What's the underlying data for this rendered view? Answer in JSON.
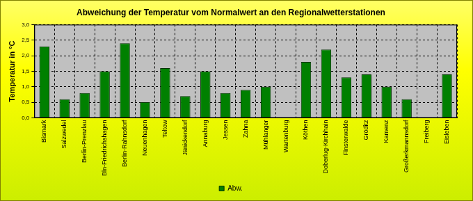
{
  "chart_data": {
    "type": "bar",
    "title": "Abweichung der Temperatur vom Normalwert an den Regionalwetterstationen",
    "y_label": "Temperatur in °C",
    "categories": [
      "Bismark",
      "Salzwedel",
      "Berlin-Prenzlau",
      "Bln-Friedrichshagen",
      "Berlin-Rahnsdorf",
      "Neuenhagen",
      "Teltow",
      "Jänickendorf",
      "Annaburg",
      "Jessen",
      "Zahna",
      "Mühlanger",
      "Wartenburg",
      "Köthen",
      "Doberlug-Kirchhain",
      "Finsterwalde",
      "Gröditz",
      "Kamenz",
      "Großerkmannsdorf",
      "Freiberg",
      "Eisleben"
    ],
    "series": [
      {
        "name": "Abw.",
        "color": "#008000",
        "values": [
          2.3,
          0.6,
          0.8,
          1.5,
          2.4,
          0.5,
          1.6,
          0.7,
          1.5,
          0.8,
          0.9,
          1.0,
          null,
          1.8,
          2.2,
          1.3,
          1.4,
          1.0,
          0.6,
          null,
          1.4
        ]
      }
    ],
    "ylim": [
      0,
      3
    ],
    "yticks": [
      {
        "value": 0,
        "label": "0,0"
      },
      {
        "value": 0.5,
        "label": "0,5"
      },
      {
        "value": 1,
        "label": "1,0"
      },
      {
        "value": 1.5,
        "label": "1,5"
      },
      {
        "value": 2,
        "label": "2,0"
      },
      {
        "value": 2.5,
        "label": "2,5"
      },
      {
        "value": 3,
        "label": "3,0"
      }
    ],
    "grid": true,
    "legend": "bottom"
  }
}
